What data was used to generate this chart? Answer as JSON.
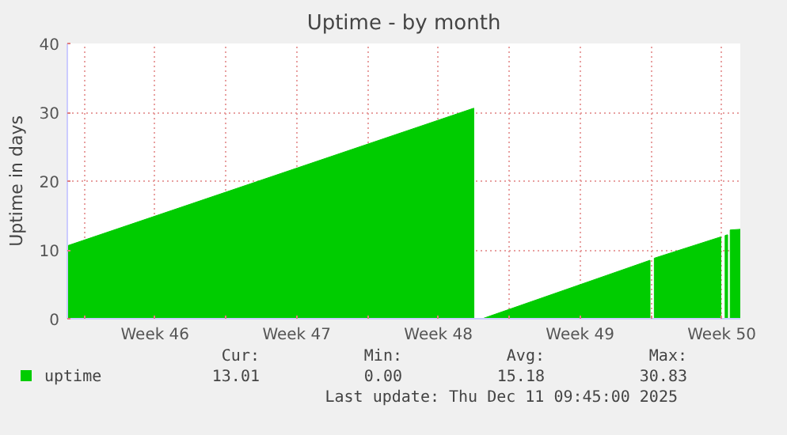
{
  "chart_data": {
    "type": "area",
    "title": "Uptime - by month",
    "ylabel": "Uptime in days",
    "x": [
      "2025-11-09T04:00",
      "2025-11-29T06:00",
      "2025-11-29T06:10",
      "2025-11-29T11:00",
      "2025-11-29T16:00",
      "2025-12-07T23:00",
      "2025-12-08T00:00",
      "2025-12-08T04:00",
      "2025-12-11T11:00",
      "2025-12-11T12:00",
      "2025-12-11T16:00",
      "2025-12-11T19:00",
      "2025-12-11T20:00",
      "2025-12-11T22:00",
      "2025-12-12T10:00"
    ],
    "series": [
      {
        "name": "uptime",
        "color": "#00cc00",
        "values": [
          10.6,
          30.6,
          0,
          0,
          0,
          8.5,
          null,
          8.8,
          11.9,
          null,
          12.1,
          12.2,
          null,
          12.9,
          13.0
        ]
      }
    ],
    "xlim": [
      "2025-11-09T04:00",
      "2025-12-12T10:00"
    ],
    "xticks": [
      {
        "value": "2025-11-10",
        "label": null
      },
      {
        "value": "2025-11-13T12:00",
        "label": "Week 46"
      },
      {
        "value": "2025-11-17",
        "label": null
      },
      {
        "value": "2025-11-20T12:00",
        "label": "Week 47"
      },
      {
        "value": "2025-11-24",
        "label": null
      },
      {
        "value": "2025-11-27T12:00",
        "label": "Week 48"
      },
      {
        "value": "2025-12-01",
        "label": null
      },
      {
        "value": "2025-12-04T12:00",
        "label": "Week 49"
      },
      {
        "value": "2025-12-08",
        "label": null
      },
      {
        "value": "2025-12-11T12:00",
        "label": "Week 50"
      }
    ],
    "ylim": [
      0,
      40
    ],
    "yticks": [
      0,
      10,
      20,
      30,
      40
    ],
    "grid": true,
    "legend": "bottom",
    "annotations": [
      "Cur:",
      "Min:",
      "Avg:",
      "Max:",
      "13.01",
      "0.00",
      "15.18",
      "30.83",
      "Last update: Thu Dec 11 09:45:00 2025"
    ]
  }
}
